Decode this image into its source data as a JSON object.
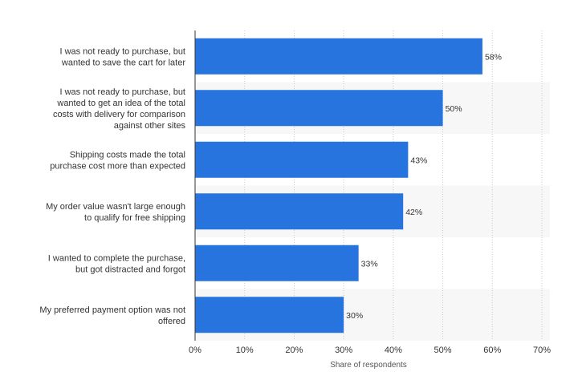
{
  "chart_data": {
    "type": "bar",
    "orientation": "horizontal",
    "categories": [
      [
        "I was not ready to purchase, but",
        "wanted to save the cart for later"
      ],
      [
        "I was not ready to purchase, but",
        "wanted to get an idea of the total",
        "costs with delivery for comparison",
        "against other sites"
      ],
      [
        "Shipping costs made the total",
        "purchase cost more than expected"
      ],
      [
        "My order value wasn't large enough",
        "to qualify for free shipping"
      ],
      [
        "I wanted to complete the purchase,",
        "but got distracted and forgot"
      ],
      [
        "My preferred payment option was not",
        "offered"
      ]
    ],
    "values": [
      58,
      50,
      43,
      42,
      33,
      30
    ],
    "value_labels": [
      "58%",
      "50%",
      "43%",
      "42%",
      "33%",
      "30%"
    ],
    "xticks": [
      0,
      10,
      20,
      30,
      40,
      50,
      60,
      70
    ],
    "xtick_labels": [
      "0%",
      "10%",
      "20%",
      "30%",
      "40%",
      "50%",
      "60%",
      "70%"
    ],
    "xlim": [
      0,
      70
    ],
    "xlabel": "Share of respondents",
    "bar_color": "#2874de",
    "grid": true,
    "alternate_row_band_color": "#f7f7f7"
  }
}
